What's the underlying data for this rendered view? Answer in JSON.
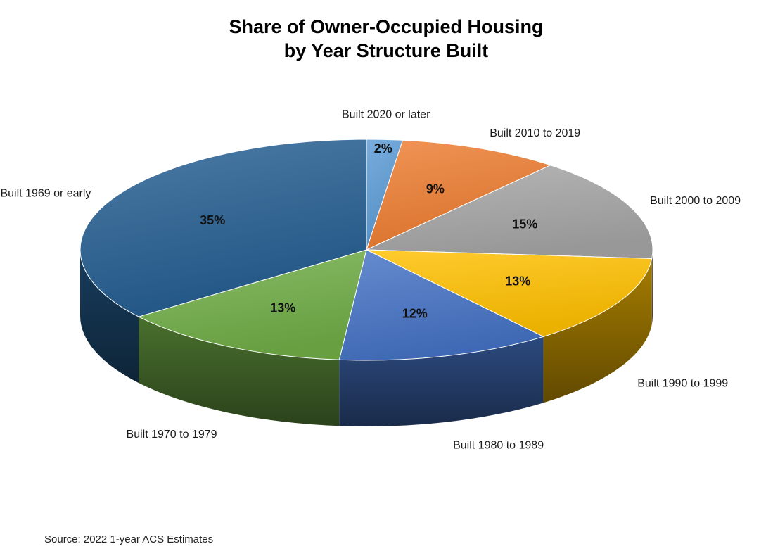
{
  "chart_data": {
    "type": "pie",
    "title_lines": [
      "Share of Owner-Occupied Housing",
      "by Year Structure Built"
    ],
    "slices": [
      {
        "label": "Built 2020 or later",
        "value": 2,
        "value_label": "2%",
        "color": "#5b9bd5"
      },
      {
        "label": "Built 2010 to 2019",
        "value": 9,
        "value_label": "9%",
        "color": "#ed7d31"
      },
      {
        "label": "Built 2000 to 2009",
        "value": 15,
        "value_label": "15%",
        "color": "#a5a5a5"
      },
      {
        "label": "Built 1990 to 1999",
        "value": 13,
        "value_label": "13%",
        "color": "#ffc000"
      },
      {
        "label": "Built 1980 to 1989",
        "value": 12,
        "value_label": "12%",
        "color": "#4472c4"
      },
      {
        "label": "Built 1970 to 1979",
        "value": 13,
        "value_label": "13%",
        "color": "#70ad47"
      },
      {
        "label": "Built 1969 or early",
        "value": 35,
        "value_label": "35%",
        "color": "#255e91"
      }
    ],
    "source": "Source: 2022 1-year ACS Estimates"
  }
}
